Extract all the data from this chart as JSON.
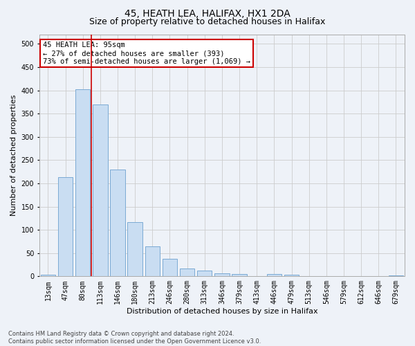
{
  "title": "45, HEATH LEA, HALIFAX, HX1 2DA",
  "subtitle": "Size of property relative to detached houses in Halifax",
  "xlabel": "Distribution of detached houses by size in Halifax",
  "ylabel": "Number of detached properties",
  "footer_line1": "Contains HM Land Registry data © Crown copyright and database right 2024.",
  "footer_line2": "Contains public sector information licensed under the Open Government Licence v3.0.",
  "categories": [
    "13sqm",
    "47sqm",
    "80sqm",
    "113sqm",
    "146sqm",
    "180sqm",
    "213sqm",
    "246sqm",
    "280sqm",
    "313sqm",
    "346sqm",
    "379sqm",
    "413sqm",
    "446sqm",
    "479sqm",
    "513sqm",
    "546sqm",
    "579sqm",
    "612sqm",
    "646sqm",
    "679sqm"
  ],
  "values": [
    3,
    213,
    403,
    370,
    230,
    117,
    65,
    38,
    17,
    13,
    6,
    5,
    0,
    5,
    4,
    0,
    0,
    0,
    0,
    0,
    2
  ],
  "bar_color": "#c9ddf2",
  "bar_edge_color": "#7aaad4",
  "red_line_x": 2.5,
  "red_line_color": "#cc0000",
  "annotation_text": "45 HEATH LEA: 95sqm\n← 27% of detached houses are smaller (393)\n73% of semi-detached houses are larger (1,069) →",
  "annotation_box_facecolor": "#ffffff",
  "annotation_box_edgecolor": "#cc0000",
  "ylim": [
    0,
    520
  ],
  "yticks": [
    0,
    50,
    100,
    150,
    200,
    250,
    300,
    350,
    400,
    450,
    500
  ],
  "grid_color": "#cccccc",
  "bg_color": "#eef2f8",
  "title_fontsize": 10,
  "subtitle_fontsize": 9,
  "axis_label_fontsize": 8,
  "tick_fontsize": 7,
  "footer_fontsize": 6
}
